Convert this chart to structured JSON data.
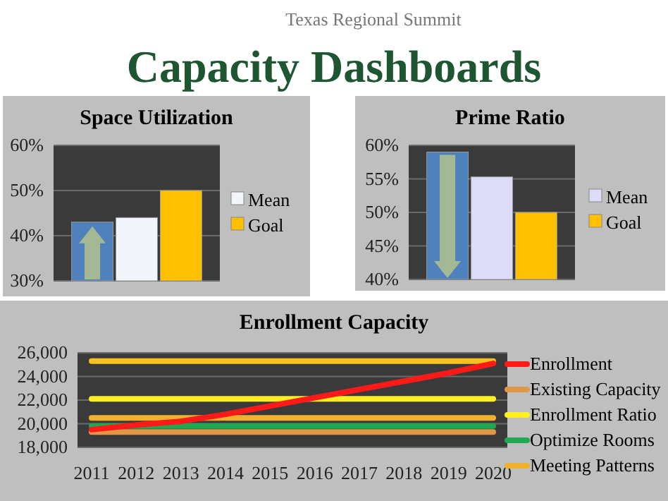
{
  "chart_data": [
    {
      "type": "other",
      "title": "Capacity Dashboards",
      "subtitle": "Texas Regional Summit"
    },
    {
      "type": "bar",
      "title": "Space Utilization",
      "categories": [
        null
      ],
      "ylim": [
        30,
        60
      ],
      "yticks": [
        {
          "value": 30,
          "label": "30%"
        },
        {
          "value": 40,
          "label": "40%"
        },
        {
          "value": 50,
          "label": "50%"
        },
        {
          "value": 60,
          "label": "60%"
        }
      ],
      "grid": "y",
      "legend": "right",
      "series": [
        {
          "color": "#4f81bd",
          "values": [
            43
          ]
        },
        {
          "name": "Mean",
          "color": "#f2f5fc",
          "values": [
            44
          ]
        },
        {
          "name": "Goal",
          "color": "#ffc000",
          "values": [
            50
          ]
        }
      ]
    },
    {
      "type": "bar",
      "title": "Prime Ratio",
      "categories": [
        null
      ],
      "ylim": [
        40,
        60
      ],
      "yticks": [
        {
          "value": 40,
          "label": "40%"
        },
        {
          "value": 45,
          "label": "45%"
        },
        {
          "value": 50,
          "label": "50%"
        },
        {
          "value": 55,
          "label": "55%"
        },
        {
          "value": 60,
          "label": "60%"
        }
      ],
      "grid": "y",
      "legend": "right",
      "series": [
        {
          "color": "#4f81bd",
          "values": [
            59
          ]
        },
        {
          "name": "Mean",
          "color": "#dcdcf8",
          "values": [
            55.3
          ]
        },
        {
          "name": "Goal",
          "color": "#ffc000",
          "values": [
            50
          ]
        }
      ]
    },
    {
      "type": "line",
      "title": "Enrollment Capacity",
      "categories": [
        "2011",
        "2012",
        "2013",
        "2014",
        "2015",
        "2016",
        "2017",
        "2018",
        "2019",
        "2020"
      ],
      "ylim": [
        18000,
        26000
      ],
      "yticks": [
        {
          "value": 18000,
          "label": "18,000"
        },
        {
          "value": 20000,
          "label": "20,000"
        },
        {
          "value": 22000,
          "label": "22,000"
        },
        {
          "value": 24000,
          "label": "24,000"
        },
        {
          "value": 26000,
          "label": "26,000"
        }
      ],
      "grid": "y",
      "legend": "right",
      "marker": "none",
      "series": [
        {
          "name": "Enrollment",
          "color": "#ff1a1a",
          "values": [
            19500,
            19900,
            20200,
            20800,
            21500,
            22200,
            22900,
            23600,
            24300,
            25100
          ]
        },
        {
          "name": "Existing Capacity",
          "color": "#e0974a",
          "values": [
            19300,
            19300,
            19300,
            19300,
            19300,
            19300,
            19300,
            19300,
            19300,
            19300
          ]
        },
        {
          "name": "Enrollment Ratio",
          "color": "#ffee22",
          "values": [
            22100,
            22100,
            22100,
            22100,
            22100,
            22100,
            22100,
            22100,
            22100,
            22100
          ]
        },
        {
          "name": "Optimize Rooms",
          "color": "#1fa84f",
          "values": [
            19800,
            19800,
            19800,
            19800,
            19800,
            19800,
            19800,
            19800,
            19800,
            19800
          ]
        },
        {
          "name": "Meeting Patterns",
          "color": "#f0b030",
          "values": [
            20500,
            20500,
            20500,
            20500,
            20500,
            20500,
            20500,
            20500,
            20500,
            20500
          ]
        },
        {
          "color": "#f5c020",
          "values": [
            25300,
            25300,
            25300,
            25300,
            25300,
            25300,
            25300,
            25300,
            25300,
            25300
          ]
        }
      ]
    }
  ]
}
